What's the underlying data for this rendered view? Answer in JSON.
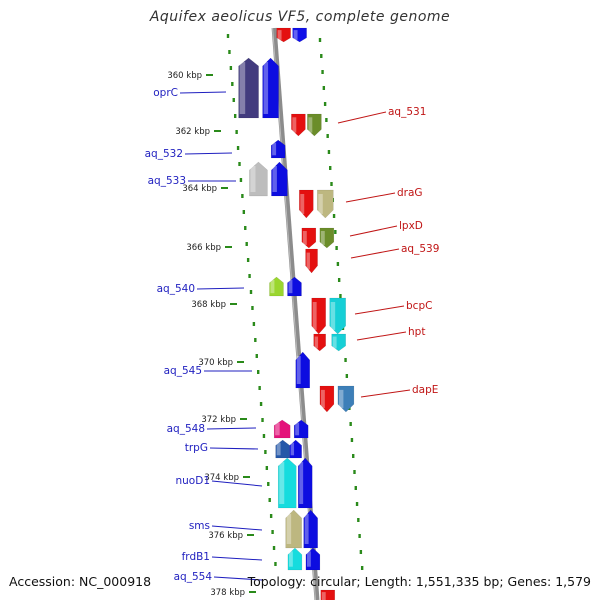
{
  "title": "Aquifex aeolicus VF5, complete genome",
  "footer": {
    "accession": "Accession: NC_000918",
    "summary": "Topology: circular; Length: 1,551,335 bp; Genes: 1,579"
  },
  "colors": {
    "backbone": "#8c8c8c",
    "gc_dots": "#2a8a1a",
    "label_left": "#1f1fbf",
    "label_right": "#c01515"
  },
  "ticks": [
    "360 kbp",
    "362 kbp",
    "364 kbp",
    "366 kbp",
    "368 kbp",
    "370 kbp",
    "372 kbp",
    "374 kbp",
    "376 kbp",
    "378 kbp"
  ],
  "genes_left": [
    "oprC",
    "aq_532",
    "aq_533",
    "aq_540",
    "aq_545",
    "aq_548",
    "trpG",
    "nuoD1",
    "sms",
    "frdB1",
    "aq_554"
  ],
  "genes_right": [
    "aq_531",
    "draG",
    "lpxD",
    "aq_539",
    "bcpC",
    "hpt",
    "dapE"
  ]
}
